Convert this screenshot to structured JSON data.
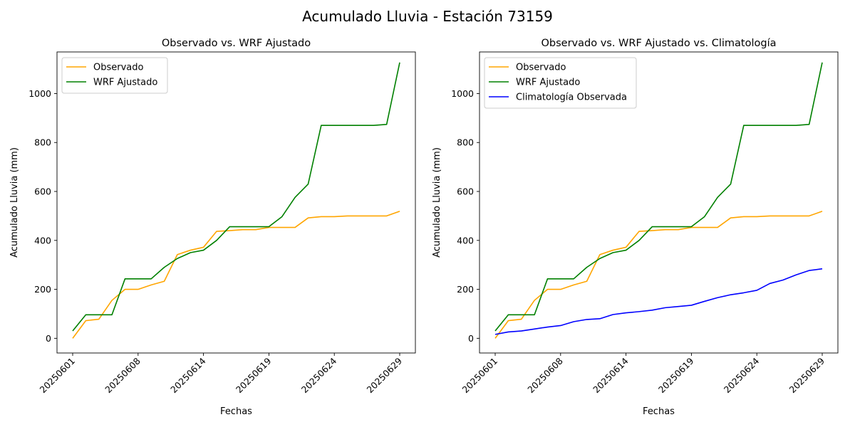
{
  "figure": {
    "suptitle": "Acumulado Lluvia - Estación 73159"
  },
  "chart_data": [
    {
      "type": "line",
      "title": "Observado vs. WRF Ajustado",
      "xlabel": "Fechas",
      "ylabel": "Acumulado Lluvia (mm)",
      "x_ticks": [
        "20250601",
        "20250608",
        "20250614",
        "20250619",
        "20250624",
        "20250629"
      ],
      "x_tick_index": [
        0,
        5,
        10,
        15,
        20,
        25
      ],
      "ylim": [
        -60,
        1170
      ],
      "y_ticks": [
        0,
        200,
        400,
        600,
        800,
        1000
      ],
      "grid": false,
      "legend": "top-left",
      "series": [
        {
          "name": "Observado",
          "color": "#ffa500",
          "values": [
            0,
            72,
            78,
            155,
            200,
            200,
            218,
            233,
            342,
            360,
            372,
            437,
            440,
            444,
            444,
            453,
            453,
            453,
            492,
            497,
            497,
            500,
            500,
            500,
            500,
            519
          ]
        },
        {
          "name": "WRF Ajustado",
          "color": "#008000",
          "values": [
            30,
            96,
            96,
            96,
            243,
            243,
            243,
            290,
            326,
            350,
            360,
            400,
            456,
            456,
            456,
            456,
            497,
            576,
            630,
            870,
            870,
            870,
            870,
            870,
            874,
            1127
          ]
        }
      ]
    },
    {
      "type": "line",
      "title": "Observado vs. WRF Ajustado vs. Climatología",
      "xlabel": "Fechas",
      "ylabel": "Acumulado Lluvia (mm)",
      "x_ticks": [
        "20250601",
        "20250608",
        "20250614",
        "20250619",
        "20250624",
        "20250629"
      ],
      "x_tick_index": [
        0,
        5,
        10,
        15,
        20,
        25
      ],
      "ylim": [
        -60,
        1170
      ],
      "y_ticks": [
        0,
        200,
        400,
        600,
        800,
        1000
      ],
      "grid": false,
      "legend": "top-left",
      "series": [
        {
          "name": "Observado",
          "color": "#ffa500",
          "values": [
            0,
            72,
            78,
            155,
            200,
            200,
            218,
            233,
            342,
            360,
            372,
            437,
            440,
            444,
            444,
            453,
            453,
            453,
            492,
            497,
            497,
            500,
            500,
            500,
            500,
            519
          ]
        },
        {
          "name": "WRF Ajustado",
          "color": "#008000",
          "values": [
            30,
            96,
            96,
            96,
            243,
            243,
            243,
            290,
            326,
            350,
            360,
            400,
            456,
            456,
            456,
            456,
            497,
            576,
            630,
            870,
            870,
            870,
            870,
            870,
            874,
            1127
          ]
        },
        {
          "name": "Climatología Observada",
          "color": "#0000ff",
          "values": [
            16,
            26,
            30,
            38,
            46,
            52,
            68,
            77,
            80,
            97,
            104,
            109,
            115,
            125,
            130,
            135,
            151,
            166,
            178,
            186,
            196,
            224,
            238,
            259,
            277,
            284
          ]
        }
      ]
    }
  ]
}
